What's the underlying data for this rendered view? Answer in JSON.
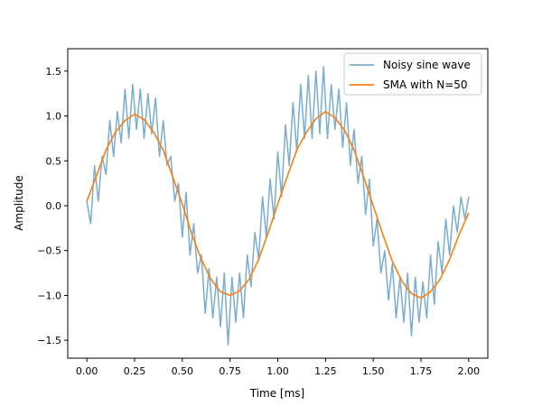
{
  "chart_data": {
    "type": "line",
    "title": "",
    "xlabel": "Time [ms]",
    "ylabel": "Amplitude",
    "xlim": [
      -0.1,
      2.1
    ],
    "ylim": [
      -1.7,
      1.75
    ],
    "x_ticks": [
      "0.00",
      "0.25",
      "0.50",
      "0.75",
      "1.00",
      "1.25",
      "1.50",
      "1.75",
      "2.00"
    ],
    "y_ticks": [
      "−1.5",
      "−1.0",
      "−0.5",
      "0.0",
      "0.5",
      "1.0",
      "1.5"
    ],
    "x_tick_values": [
      0,
      0.25,
      0.5,
      0.75,
      1.0,
      1.25,
      1.5,
      1.75,
      2.0
    ],
    "y_tick_values": [
      -1.5,
      -1.0,
      -0.5,
      0.0,
      0.5,
      1.0,
      1.5
    ],
    "grid": false,
    "legend_position": "top-right",
    "series": [
      {
        "name": "Noisy sine wave",
        "color": "#1f77b4",
        "opacity": 0.6,
        "x": [
          0.0,
          0.02,
          0.04,
          0.06,
          0.08,
          0.1,
          0.12,
          0.14,
          0.16,
          0.18,
          0.2,
          0.22,
          0.24,
          0.26,
          0.28,
          0.3,
          0.32,
          0.34,
          0.36,
          0.38,
          0.4,
          0.42,
          0.44,
          0.46,
          0.48,
          0.5,
          0.52,
          0.54,
          0.56,
          0.58,
          0.6,
          0.62,
          0.64,
          0.66,
          0.68,
          0.7,
          0.72,
          0.74,
          0.76,
          0.78,
          0.8,
          0.82,
          0.84,
          0.86,
          0.88,
          0.9,
          0.92,
          0.94,
          0.96,
          0.98,
          1.0,
          1.02,
          1.04,
          1.06,
          1.08,
          1.1,
          1.12,
          1.14,
          1.16,
          1.18,
          1.2,
          1.22,
          1.24,
          1.26,
          1.28,
          1.3,
          1.32,
          1.34,
          1.36,
          1.38,
          1.4,
          1.42,
          1.44,
          1.46,
          1.48,
          1.5,
          1.52,
          1.54,
          1.56,
          1.58,
          1.6,
          1.62,
          1.64,
          1.66,
          1.68,
          1.7,
          1.72,
          1.74,
          1.76,
          1.78,
          1.8,
          1.82,
          1.84,
          1.86,
          1.88,
          1.9,
          1.92,
          1.94,
          1.96,
          1.98,
          2.0
        ],
        "y": [
          0.05,
          -0.2,
          0.45,
          0.05,
          0.55,
          0.35,
          0.95,
          0.55,
          1.05,
          0.7,
          1.3,
          0.75,
          1.35,
          0.85,
          1.3,
          0.75,
          1.25,
          0.8,
          1.2,
          0.55,
          0.95,
          0.45,
          0.55,
          0.05,
          0.25,
          -0.35,
          0.15,
          -0.55,
          -0.2,
          -0.75,
          -0.55,
          -1.2,
          -0.7,
          -1.25,
          -0.8,
          -1.35,
          -0.75,
          -1.55,
          -0.8,
          -1.3,
          -0.75,
          -1.25,
          -0.55,
          -0.9,
          -0.3,
          -0.6,
          0.1,
          -0.35,
          0.3,
          -0.15,
          0.6,
          0.1,
          0.9,
          0.45,
          1.15,
          0.6,
          1.35,
          0.75,
          1.45,
          0.75,
          1.5,
          0.8,
          1.55,
          0.75,
          1.35,
          0.85,
          1.3,
          0.65,
          1.15,
          0.45,
          0.85,
          0.25,
          0.55,
          -0.1,
          0.3,
          -0.45,
          -0.15,
          -0.75,
          -0.5,
          -1.05,
          -0.65,
          -1.25,
          -0.8,
          -1.3,
          -0.75,
          -1.45,
          -0.8,
          -1.3,
          -0.85,
          -1.25,
          -0.55,
          -1.1,
          -0.4,
          -0.75,
          -0.15,
          -0.55,
          0.0,
          -0.3,
          0.1,
          -0.15,
          0.1
        ]
      },
      {
        "name": "SMA with N=50",
        "color": "#ff7f0e",
        "opacity": 1,
        "x": [
          0.0,
          0.05,
          0.1,
          0.15,
          0.2,
          0.25,
          0.3,
          0.35,
          0.4,
          0.45,
          0.5,
          0.55,
          0.6,
          0.65,
          0.7,
          0.75,
          0.8,
          0.85,
          0.9,
          0.95,
          1.0,
          1.05,
          1.1,
          1.15,
          1.2,
          1.25,
          1.3,
          1.35,
          1.4,
          1.45,
          1.5,
          1.55,
          1.6,
          1.65,
          1.7,
          1.75,
          1.8,
          1.85,
          1.9,
          1.95,
          2.0
        ],
        "y": [
          0.05,
          0.33,
          0.62,
          0.82,
          0.95,
          1.02,
          0.96,
          0.82,
          0.62,
          0.32,
          0.02,
          -0.32,
          -0.6,
          -0.82,
          -0.96,
          -1.0,
          -0.95,
          -0.82,
          -0.6,
          -0.3,
          0.02,
          0.33,
          0.62,
          0.82,
          0.97,
          1.05,
          0.98,
          0.84,
          0.62,
          0.32,
          0.0,
          -0.32,
          -0.62,
          -0.84,
          -0.98,
          -1.03,
          -0.96,
          -0.82,
          -0.6,
          -0.32,
          -0.08
        ]
      }
    ]
  }
}
